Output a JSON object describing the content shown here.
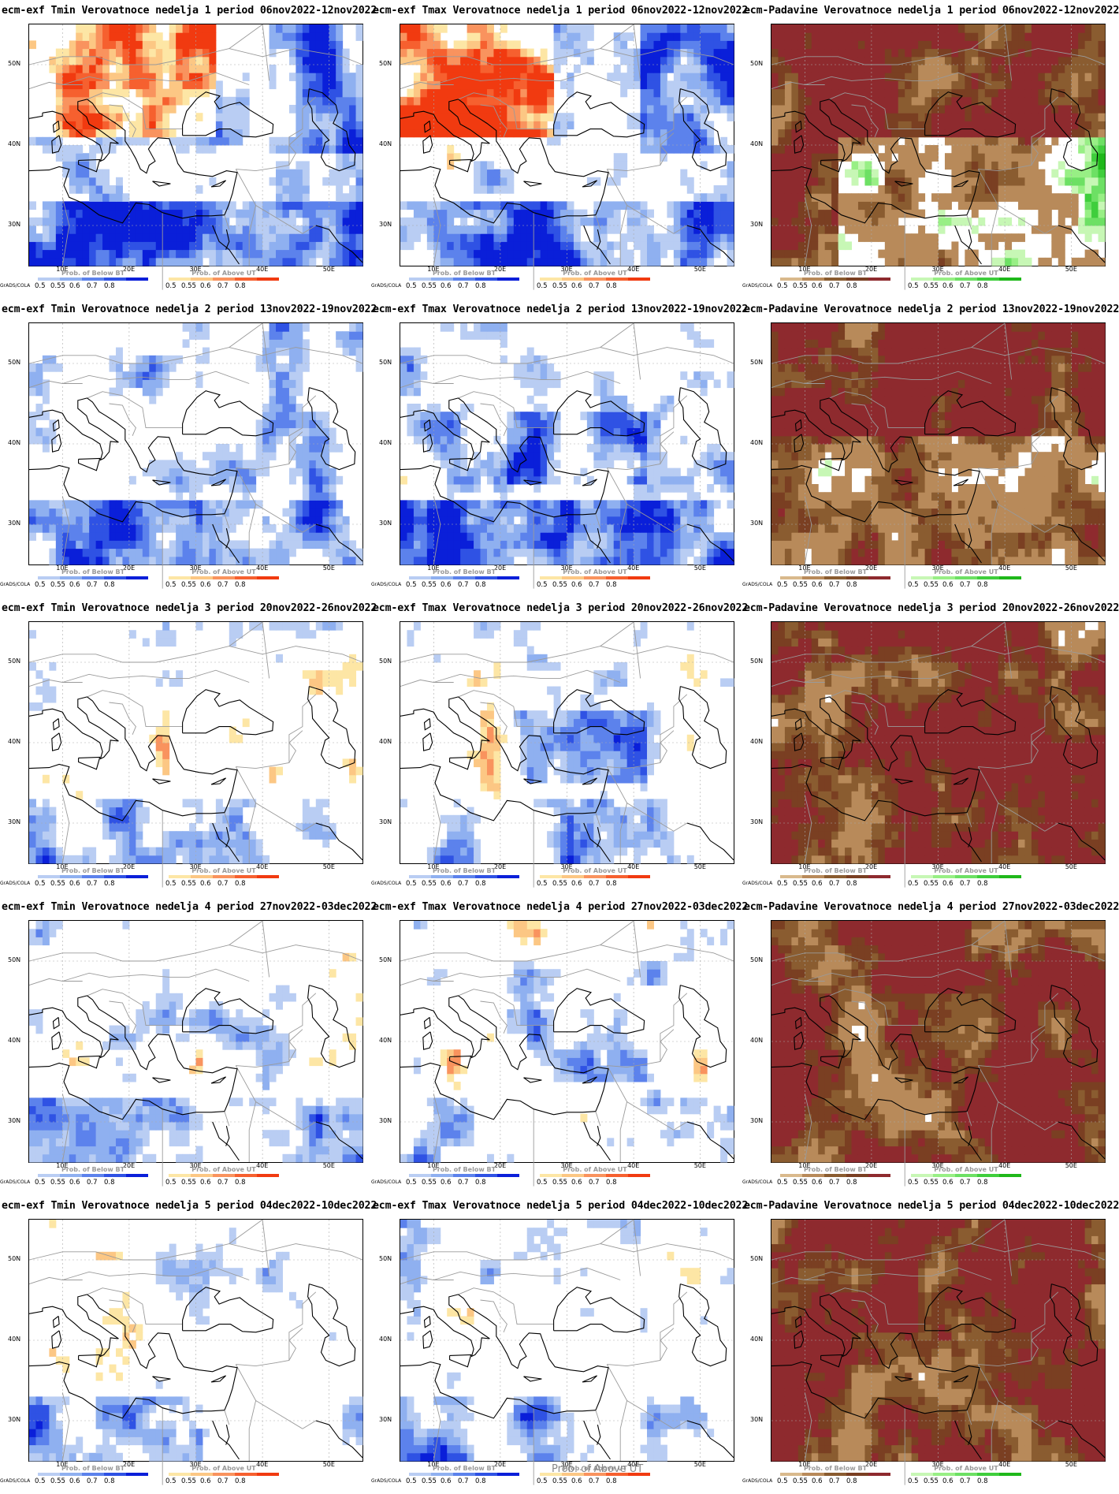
{
  "map_extent": {
    "lon_min": 5,
    "lon_max": 55,
    "lat_min": 25,
    "lat_max": 55
  },
  "axis": {
    "lat_ticks": [
      "30N",
      "40N",
      "50N"
    ],
    "lon_ticks": [
      "10E",
      "20E",
      "30E",
      "40E",
      "50E"
    ]
  },
  "credit": "GrADS/COLA",
  "legend_ticks": [
    "0.5",
    "0.55",
    "0.6",
    "0.7",
    "0.8"
  ],
  "legends": {
    "below": {
      "title": "Prob. of Below BT",
      "colors": [
        "#b9cdf3",
        "#8fb0f0",
        "#5c82ec",
        "#2f52e4",
        "#0a1fd9"
      ]
    },
    "above": {
      "title": "Prob. of Above UT",
      "colors": [
        "#fde6a5",
        "#fcc784",
        "#f9935e",
        "#f6602f",
        "#f13a10"
      ]
    },
    "dry": {
      "title": "Prob. of Below BT",
      "colors": [
        "#d9b98c",
        "#b88a5a",
        "#8a5c30",
        "#7a3f22",
        "#8e2a2e"
      ]
    },
    "wet": {
      "title": "Prob. of Above UT",
      "colors": [
        "#c7f7b5",
        "#98ef85",
        "#6de064",
        "#3fce3c",
        "#1fb81a"
      ]
    }
  },
  "bottom_overlay_label": "Prob. of Above UT",
  "panels": [
    {
      "title": "ecm-exf Tmin Verovatnoce nedelja 1 period 06nov2022-12nov2022",
      "type": "temp",
      "week": 1,
      "variable": "Tmin"
    },
    {
      "title": "ecm-exf Tmax Verovatnoce nedelja 1 period 06nov2022-12nov2022",
      "type": "temp",
      "week": 1,
      "variable": "Tmax"
    },
    {
      "title": "ecm-Padavine Verovatnoce nedelja 1 period 06nov2022-12nov2022",
      "type": "precip",
      "week": 1,
      "variable": "Padavine"
    },
    {
      "title": "ecm-exf Tmin Verovatnoce nedelja 2 period 13nov2022-19nov2022",
      "type": "temp",
      "week": 2,
      "variable": "Tmin"
    },
    {
      "title": "ecm-exf Tmax Verovatnoce nedelja 2 period 13nov2022-19nov2022",
      "type": "temp",
      "week": 2,
      "variable": "Tmax"
    },
    {
      "title": "ecm-Padavine Verovatnoce nedelja 2 period 13nov2022-19nov2022",
      "type": "precip",
      "week": 2,
      "variable": "Padavine"
    },
    {
      "title": "ecm-exf Tmin Verovatnoce nedelja 3 period 20nov2022-26nov2022",
      "type": "temp",
      "week": 3,
      "variable": "Tmin"
    },
    {
      "title": "ecm-exf Tmax Verovatnoce nedelja 3 period 20nov2022-26nov2022",
      "type": "temp",
      "week": 3,
      "variable": "Tmax"
    },
    {
      "title": "ecm-Padavine Verovatnoce nedelja 3 period 20nov2022-26nov2022",
      "type": "precip",
      "week": 3,
      "variable": "Padavine"
    },
    {
      "title": "ecm-exf Tmin Verovatnoce nedelja 4 period 27nov2022-03dec2022",
      "type": "temp",
      "week": 4,
      "variable": "Tmin"
    },
    {
      "title": "ecm-exf Tmax Verovatnoce nedelja 4 period 27nov2022-03dec2022",
      "type": "temp",
      "week": 4,
      "variable": "Tmax"
    },
    {
      "title": "ecm-Padavine Verovatnoce nedelja 4 period 27nov2022-03dec2022",
      "type": "precip",
      "week": 4,
      "variable": "Padavine"
    },
    {
      "title": "ecm-exf Tmin Verovatnoce nedelja 5 period 04dec2022-10dec2022",
      "type": "temp",
      "week": 5,
      "variable": "Tmin"
    },
    {
      "title": "ecm-exf Tmax Verovatnoce nedelja 5 period 04dec2022-10dec2022",
      "type": "temp",
      "week": 5,
      "variable": "Tmax"
    },
    {
      "title": "ecm-Padavine Verovatnoce nedelja 5 period 04dec2022-10dec2022",
      "type": "precip",
      "week": 5,
      "variable": "Padavine"
    }
  ]
}
